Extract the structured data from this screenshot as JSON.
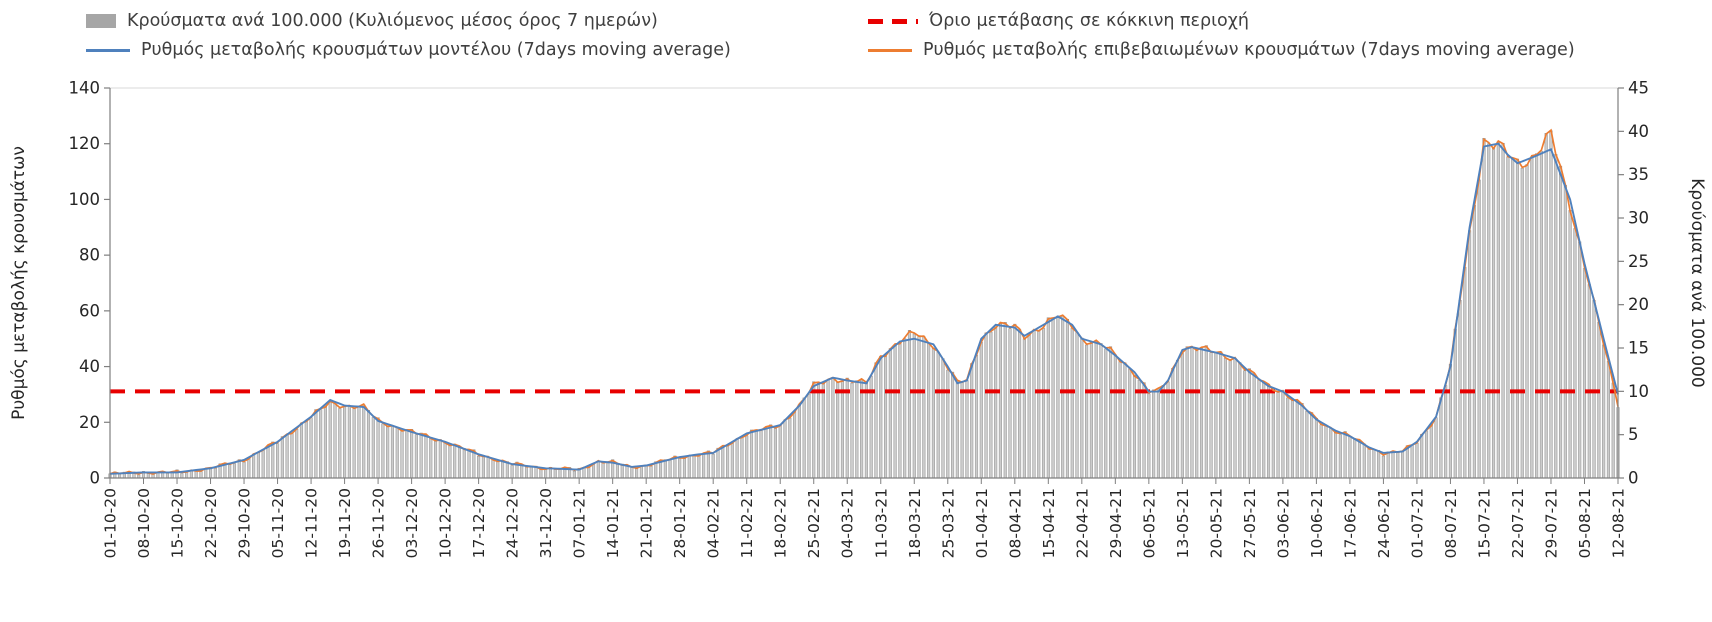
{
  "legend": {
    "bars": "Κρούσματα ανά 100.000 (Κυλιόμενος μέσος όρος 7 ημερών)",
    "threshold": "Όριο μετάβασης σε κόκκινη περιοχή",
    "model": "Ρυθμός μεταβολής κρουσμάτων μοντέλου (7days moving average)",
    "confirmed": "Ρυθμός μεταβολής επιβεβαιωμένων κρουσμάτων (7days moving average)"
  },
  "colors": {
    "bars": "#cccccc",
    "bar_stroke": "#8f8f8f",
    "bars_legend": "#a6a6a6",
    "threshold": "#e80000",
    "model": "#4f81bd",
    "confirmed": "#ed7d31",
    "axis": "#7f7f7f",
    "border": "#d9d9d9",
    "text": "#262626"
  },
  "chart_data": {
    "type": "combo-bar-line",
    "title": "",
    "grid": false,
    "legend_position": "top",
    "days_total": 316,
    "x_tick_labels": [
      "01-10-20",
      "08-10-20",
      "15-10-20",
      "22-10-20",
      "29-10-20",
      "05-11-20",
      "12-11-20",
      "19-11-20",
      "26-11-20",
      "03-12-20",
      "10-12-20",
      "17-12-20",
      "24-12-20",
      "31-12-20",
      "07-01-21",
      "14-01-21",
      "21-01-21",
      "28-01-21",
      "04-02-21",
      "11-02-21",
      "18-02-21",
      "25-02-21",
      "04-03-21",
      "11-03-21",
      "18-03-21",
      "25-03-21",
      "01-04-21",
      "08-04-21",
      "15-04-21",
      "22-04-21",
      "29-04-21",
      "06-05-21",
      "13-05-21",
      "20-05-21",
      "27-05-21",
      "03-06-21",
      "10-06-21",
      "17-06-21",
      "24-06-21",
      "01-07-21",
      "08-07-21",
      "15-07-21",
      "22-07-21",
      "29-07-21",
      "05-08-21",
      "12-08-21"
    ],
    "left_axis": {
      "label": "Ρυθμός μεταβολής κρουσμάτων",
      "min": 0,
      "max": 140,
      "step": 20,
      "ticks": [
        0,
        20,
        40,
        60,
        80,
        100,
        120,
        140
      ]
    },
    "right_axis": {
      "label": "Κρούσματα ανά 100.000",
      "min": 0,
      "max": 45,
      "step": 5,
      "ticks": [
        0,
        5,
        10,
        15,
        20,
        25,
        30,
        35,
        40,
        45
      ]
    },
    "threshold": {
      "label": "Όριο μετάβασης σε κόκκινη περιοχή",
      "value_right_axis": 10,
      "value_left_axis": 31.1,
      "style": "dashed"
    },
    "series": [
      {
        "name": "Κρούσματα ανά 100.000 (Κυλιόμενος μέσος όρος 7 ημερών)",
        "type": "bar",
        "axis": "right"
      },
      {
        "name": "Ρυθμός μεταβολής κρουσμάτων μοντέλου (7days moving average)",
        "type": "line",
        "axis": "left"
      },
      {
        "name": "Ρυθμός μεταβολής επιβεβαιωμένων κρουσμάτων (7days moving average)",
        "type": "line",
        "axis": "left"
      }
    ],
    "anchors": {
      "note": "day index 0 = 01-10-20, 315 = 12-08-21; values read off chart",
      "days": [
        0,
        7,
        14,
        21,
        28,
        35,
        42,
        46,
        49,
        53,
        56,
        63,
        70,
        77,
        84,
        91,
        98,
        102,
        105,
        109,
        112,
        119,
        123,
        126,
        133,
        140,
        144,
        147,
        151,
        154,
        158,
        161,
        165,
        168,
        172,
        175,
        177,
        179,
        182,
        185,
        189,
        191,
        196,
        198,
        201,
        203,
        207,
        210,
        214,
        217,
        219,
        221,
        224,
        226,
        231,
        235,
        238,
        242,
        245,
        249,
        252,
        256,
        259,
        263,
        266,
        270,
        273,
        277,
        280,
        284,
        287,
        290,
        292,
        294,
        297,
        301,
        305,
        308,
        312,
        315
      ],
      "model_left_axis": [
        1.5,
        2,
        2,
        3.5,
        6.5,
        13,
        22,
        28,
        26,
        25.5,
        20.5,
        16.5,
        13,
        8.5,
        5,
        3.5,
        3,
        6,
        5.5,
        4,
        4.5,
        7.5,
        8.5,
        9,
        16,
        19,
        26,
        33,
        36,
        35,
        34,
        43,
        49,
        50,
        48,
        40,
        34,
        35,
        50,
        55,
        54,
        51,
        56,
        58,
        55,
        50,
        48,
        44,
        38,
        31,
        31,
        35,
        46,
        47,
        45,
        43,
        38,
        33,
        31,
        26,
        21,
        17,
        15,
        11,
        9,
        9.5,
        13,
        22,
        40,
        90,
        119,
        120,
        116,
        113,
        115,
        118,
        100,
        77,
        50,
        30
      ],
      "confirmed_left_axis": [
        1.5,
        2,
        2,
        3.5,
        6.5,
        13,
        22,
        27,
        26,
        25.5,
        20.5,
        16.5,
        13,
        8.5,
        5,
        3.5,
        3,
        6,
        5.5,
        4,
        4.5,
        7.5,
        8.5,
        9,
        16,
        19,
        26,
        33,
        36,
        35,
        34,
        44,
        49,
        52,
        48,
        40,
        34,
        35,
        50,
        55,
        54,
        51,
        56,
        58,
        55,
        50,
        48,
        44,
        38,
        31,
        31,
        35,
        46.5,
        47,
        45,
        43,
        38,
        33,
        31,
        26,
        21,
        17,
        15,
        11,
        9,
        9.5,
        13,
        22,
        40,
        88,
        121,
        119,
        116,
        113,
        115,
        123,
        98,
        77,
        48,
        26.5
      ],
      "bars_right_axis": [
        0.5,
        0.6,
        0.6,
        1.1,
        2.1,
        4.2,
        7.1,
        8.7,
        8.4,
        8.2,
        6.6,
        5.3,
        4.2,
        2.7,
        1.6,
        1.1,
        1.0,
        1.9,
        1.8,
        1.3,
        1.4,
        2.4,
        2.7,
        2.9,
        5.1,
        6.1,
        8.4,
        10.6,
        11.6,
        11.3,
        10.9,
        14.1,
        15.8,
        16.7,
        15.4,
        12.9,
        10.9,
        11.3,
        16.1,
        17.7,
        17.4,
        16.4,
        18.0,
        18.6,
        17.7,
        16.1,
        15.4,
        14.1,
        12.2,
        10.0,
        10.0,
        11.3,
        14.9,
        15.1,
        14.5,
        13.8,
        12.2,
        10.6,
        10.0,
        8.4,
        6.8,
        5.5,
        4.8,
        3.5,
        2.9,
        3.1,
        4.2,
        7.1,
        12.9,
        28.3,
        38.9,
        38.3,
        37.3,
        36.3,
        37.0,
        39.5,
        31.5,
        24.8,
        15.4,
        8.5
      ]
    }
  }
}
